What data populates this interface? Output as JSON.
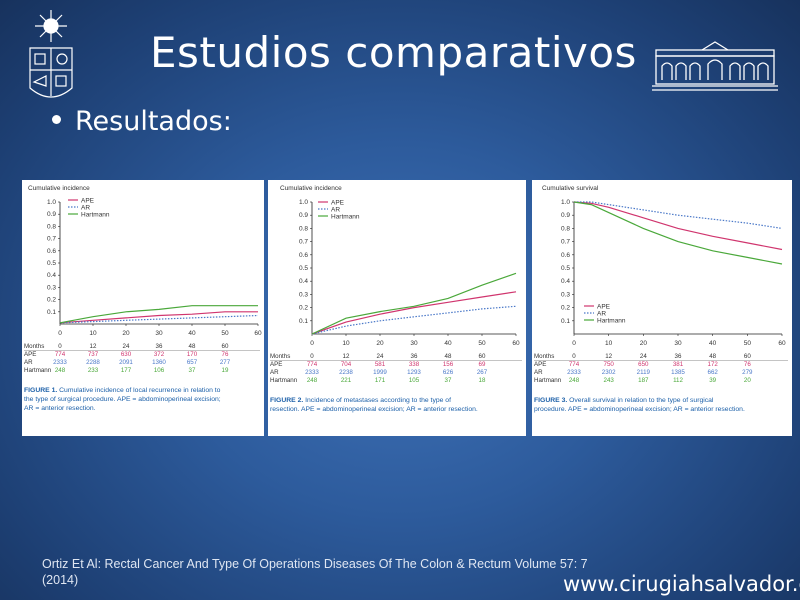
{
  "slide": {
    "title": "Estudios comparativos",
    "bullet": "Resultados:",
    "citation_line1": "Ortiz Et Al: Rectal Cancer And Type Of Operations Diseases Of The Colon & Rectum Volume 57: 7",
    "citation_line2": "(2014)",
    "website": "www.cirugiahsalvador.cl"
  },
  "colors": {
    "APE": "#d0356e",
    "AR": "#4a78c8",
    "Hartmann": "#4aa83a",
    "caption": "#1b5fa8"
  },
  "chart_data": [
    {
      "type": "line",
      "ylabel": "Cumulative incidence",
      "x": [
        0,
        10,
        20,
        30,
        40,
        50,
        60
      ],
      "ylim": [
        0,
        1.0
      ],
      "yticks": [
        "0.1",
        "0.2",
        "0.3",
        "0.4",
        "0.5",
        "0.6",
        "0.7",
        "0.8",
        "0.9",
        "1.0"
      ],
      "xticks": [
        "0",
        "10",
        "20",
        "30",
        "40",
        "50",
        "60"
      ],
      "series": [
        {
          "name": "APE",
          "style": "solid",
          "values": [
            0.01,
            0.03,
            0.05,
            0.07,
            0.08,
            0.1,
            0.1
          ]
        },
        {
          "name": "AR",
          "style": "dotted",
          "values": [
            0.01,
            0.02,
            0.03,
            0.04,
            0.05,
            0.06,
            0.07
          ]
        },
        {
          "name": "Hartmann",
          "style": "solid",
          "values": [
            0.01,
            0.06,
            0.1,
            0.12,
            0.15,
            0.15,
            0.15
          ]
        }
      ],
      "table": {
        "header": [
          "Months",
          "0",
          "12",
          "24",
          "36",
          "48",
          "60"
        ],
        "rows": [
          [
            "APE",
            "774",
            "737",
            "630",
            "372",
            "170",
            "76"
          ],
          [
            "AR",
            "2333",
            "2288",
            "2091",
            "1360",
            "657",
            "277"
          ],
          [
            "Hartmann",
            "248",
            "233",
            "177",
            "106",
            "37",
            "19"
          ]
        ]
      },
      "caption_label": "FIGURE 1.",
      "caption_text1": "Cumulative incidence of local recurrence in relation to",
      "caption_text2": "the type of surgical procedure. APE = abdominoperineal excision;",
      "caption_text3": "AR = anterior resection."
    },
    {
      "type": "line",
      "ylabel": "Cumulative incidence",
      "x": [
        0,
        10,
        20,
        30,
        40,
        50,
        60
      ],
      "ylim": [
        0,
        1.0
      ],
      "yticks": [
        "0.1",
        "0.2",
        "0.3",
        "0.4",
        "0.5",
        "0.6",
        "0.7",
        "0.8",
        "0.9",
        "1.0"
      ],
      "xticks": [
        "0",
        "10",
        "20",
        "30",
        "40",
        "50",
        "60"
      ],
      "series": [
        {
          "name": "APE",
          "style": "solid",
          "values": [
            0.0,
            0.09,
            0.15,
            0.2,
            0.24,
            0.28,
            0.32
          ]
        },
        {
          "name": "AR",
          "style": "dotted",
          "values": [
            0.0,
            0.06,
            0.1,
            0.13,
            0.16,
            0.19,
            0.21
          ]
        },
        {
          "name": "Hartmann",
          "style": "solid",
          "values": [
            0.0,
            0.12,
            0.17,
            0.21,
            0.27,
            0.37,
            0.46
          ]
        }
      ],
      "table": {
        "header": [
          "Months",
          "0",
          "12",
          "24",
          "36",
          "48",
          "60"
        ],
        "rows": [
          [
            "APE",
            "774",
            "704",
            "581",
            "338",
            "156",
            "69"
          ],
          [
            "AR",
            "2333",
            "2238",
            "1999",
            "1293",
            "626",
            "267"
          ],
          [
            "Hartmann",
            "248",
            "221",
            "171",
            "105",
            "37",
            "18"
          ]
        ]
      },
      "caption_label": "FIGURE 2.",
      "caption_text1": "Incidence of metastases according to the type of",
      "caption_text2": "resection. APE = abdominoperineal excision; AR = anterior resection.",
      "caption_text3": ""
    },
    {
      "type": "line",
      "ylabel": "Cumulative survival",
      "x": [
        0,
        5,
        10,
        20,
        30,
        40,
        50,
        60
      ],
      "ylim": [
        0,
        1.0
      ],
      "yticks": [
        "0.1",
        "0.2",
        "0.3",
        "0.4",
        "0.5",
        "0.6",
        "0.7",
        "0.8",
        "0.9",
        "1.0"
      ],
      "xticks": [
        "0",
        "10",
        "20",
        "30",
        "40",
        "50",
        "60"
      ],
      "series": [
        {
          "name": "APE",
          "style": "solid",
          "values": [
            1.0,
            0.99,
            0.96,
            0.88,
            0.8,
            0.74,
            0.69,
            0.64
          ]
        },
        {
          "name": "AR",
          "style": "dotted",
          "values": [
            1.0,
            1.0,
            0.98,
            0.94,
            0.9,
            0.87,
            0.84,
            0.8
          ]
        },
        {
          "name": "Hartmann",
          "style": "solid",
          "values": [
            1.0,
            0.98,
            0.92,
            0.8,
            0.7,
            0.63,
            0.58,
            0.53
          ]
        }
      ],
      "table": {
        "header": [
          "Months",
          "0",
          "12",
          "24",
          "36",
          "48",
          "60"
        ],
        "rows": [
          [
            "APE",
            "774",
            "750",
            "650",
            "381",
            "172",
            "76"
          ],
          [
            "AR",
            "2333",
            "2302",
            "2119",
            "1385",
            "662",
            "279"
          ],
          [
            "Hartmann",
            "248",
            "243",
            "187",
            "112",
            "39",
            "20"
          ]
        ]
      },
      "caption_label": "FIGURE 3.",
      "caption_text1": "Overall survival in relation to the type of surgical",
      "caption_text2": "procedure. APE = abdominoperineal excision; AR = anterior resection.",
      "caption_text3": ""
    }
  ]
}
